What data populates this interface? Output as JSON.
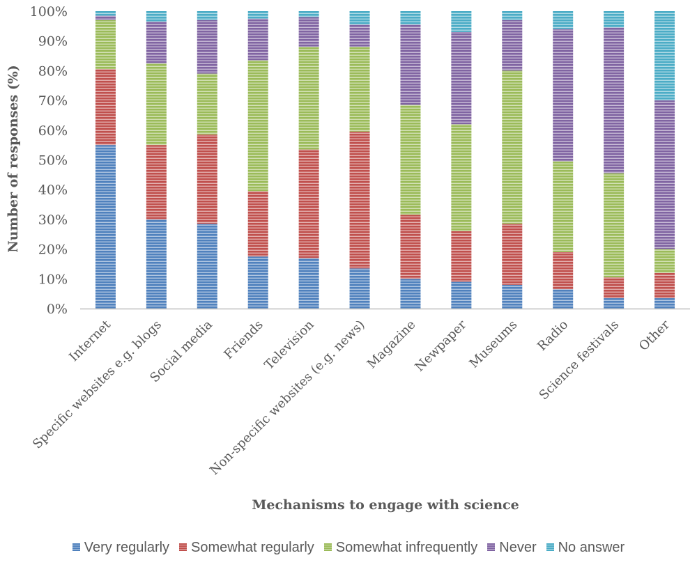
{
  "chart_data": {
    "type": "bar",
    "stacked": true,
    "percent": true,
    "title": "",
    "xlabel": "Mechanisms to engage with science",
    "ylabel": "Number of responses (%)",
    "ylim": [
      0,
      100
    ],
    "y_ticks": [
      "0%",
      "10%",
      "20%",
      "30%",
      "40%",
      "50%",
      "60%",
      "70%",
      "80%",
      "90%",
      "100%"
    ],
    "grid": false,
    "legend_position": "bottom",
    "categories": [
      "Internet",
      "Specific websites e.g. blogs",
      "Social media",
      "Friends",
      "Television",
      "Non-specific websites (e.g. news)",
      "Magazine",
      "Newpaper",
      "Museums",
      "Radio",
      "Science festivals",
      "Other"
    ],
    "series": [
      {
        "name": "Very regularly",
        "color": "#4f81bd",
        "values": [
          55,
          30,
          28.5,
          17.5,
          17,
          13.5,
          10,
          9,
          8,
          6.5,
          3.5,
          3.5
        ]
      },
      {
        "name": "Somewhat regularly",
        "color": "#c0504d",
        "values": [
          25.5,
          25,
          30,
          22,
          36.5,
          46,
          21.5,
          17,
          20.5,
          12.5,
          7,
          8.5
        ]
      },
      {
        "name": "Somewhat infrequently",
        "color": "#9bbb59",
        "values": [
          16.5,
          27.5,
          20.5,
          44,
          34.5,
          28.5,
          37,
          36,
          51.5,
          30.5,
          35,
          8
        ]
      },
      {
        "name": "Never",
        "color": "#8064a2",
        "values": [
          1.5,
          14,
          18,
          14,
          10,
          7.5,
          27,
          31,
          17,
          44.5,
          49,
          50
        ]
      },
      {
        "name": "No answer",
        "color": "#4bacc6",
        "values": [
          1.5,
          3.5,
          3,
          2.5,
          2,
          4.5,
          4.5,
          7,
          3,
          6,
          5.5,
          30
        ]
      }
    ]
  }
}
